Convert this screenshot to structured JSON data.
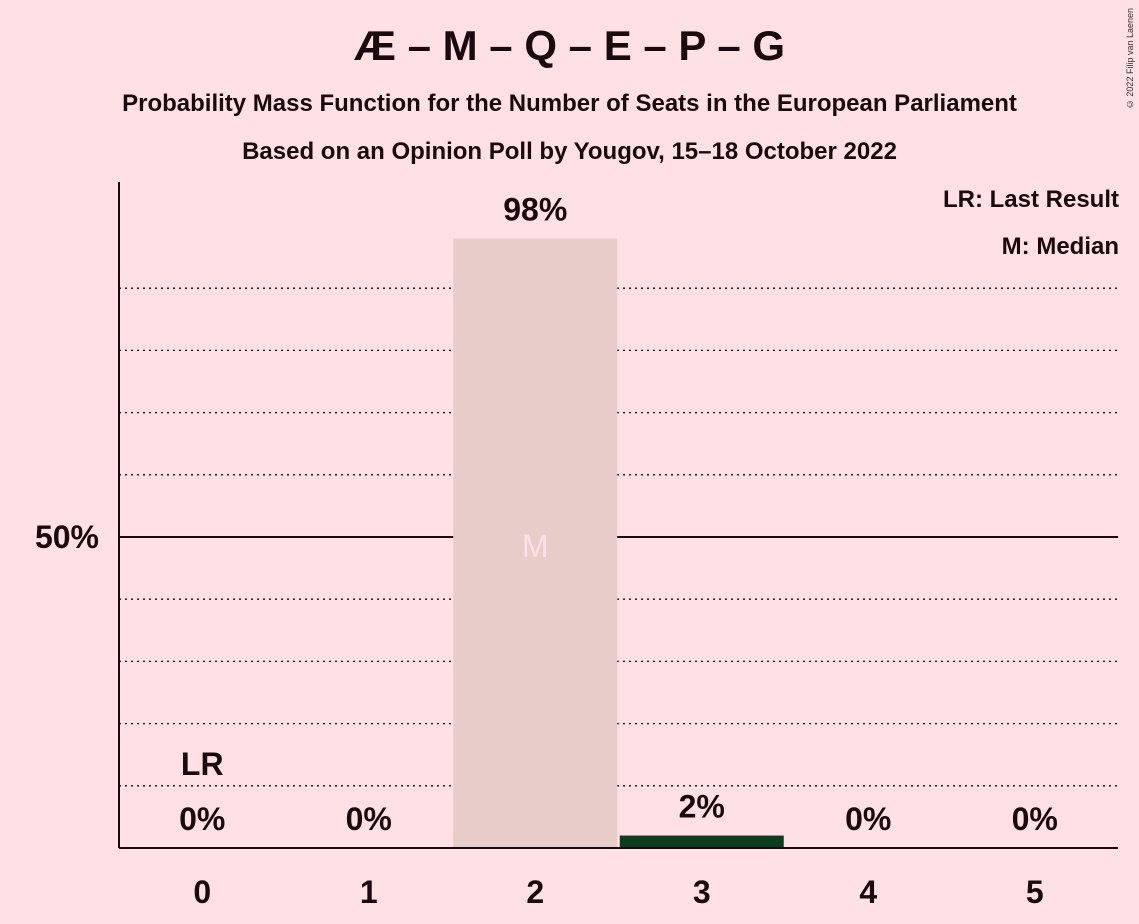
{
  "title": "Æ – M – Q – E – P – G",
  "subtitle1": "Probability Mass Function for the Number of Seats in the European Parliament",
  "subtitle2": "Based on an Opinion Poll by Yougov, 15–18 October 2022",
  "copyright": "© 2022 Filip van Laenen",
  "legend": {
    "last_result": "LR: Last Result",
    "median": "M: Median"
  },
  "colors": {
    "background": "#ffe1e5",
    "bar_median": "#e8ccc9",
    "bar_other": "#0b3d1f",
    "text": "#1a0a0e",
    "median_marker": "#ffe1e5"
  },
  "chart_data": {
    "type": "bar",
    "categories": [
      "0",
      "1",
      "2",
      "3",
      "4",
      "5"
    ],
    "values": [
      0,
      0,
      98,
      2,
      0,
      0
    ],
    "value_labels": [
      "0%",
      "0%",
      "98%",
      "2%",
      "0%",
      "0%"
    ],
    "ylim": [
      0,
      100
    ],
    "y_ticks": [
      {
        "value": 50,
        "label": "50%"
      }
    ],
    "gridlines_dotted": [
      10,
      20,
      30,
      40,
      60,
      70,
      80,
      90
    ],
    "last_result_category": "0",
    "last_result_label": "LR",
    "median_category": "2",
    "median_label": "M"
  }
}
